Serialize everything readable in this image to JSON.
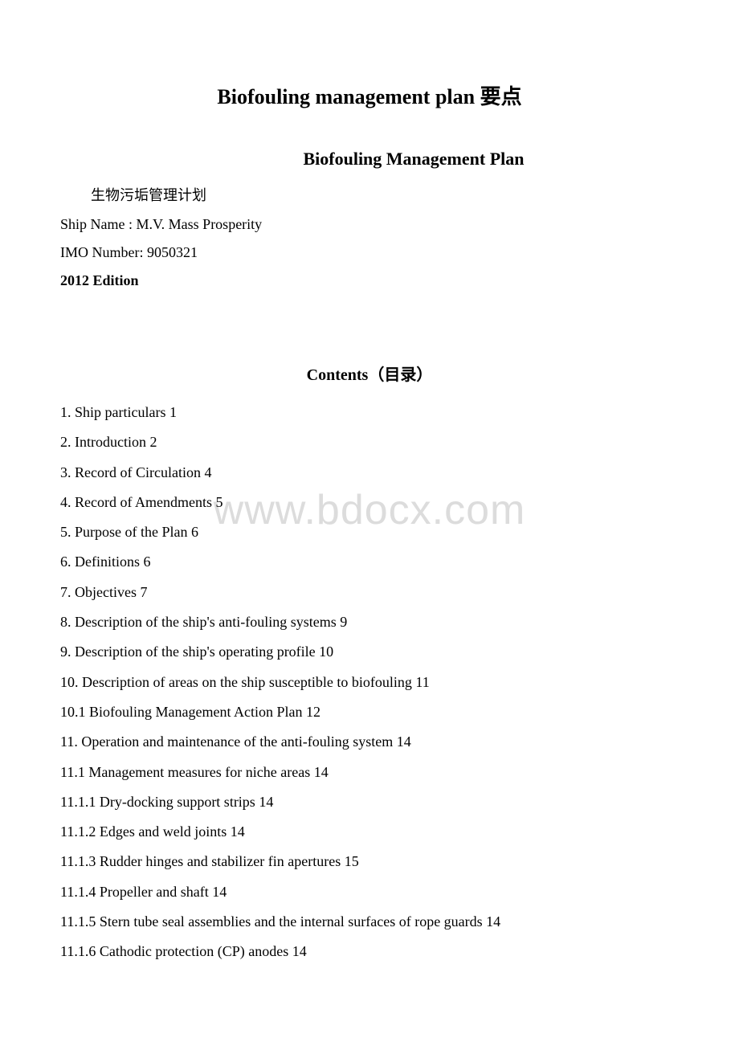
{
  "watermark": "www.bdocx.com",
  "main_title": "Biofouling management plan 要点",
  "subtitle": "Biofouling Management Plan",
  "indent_cn": "生物污垢管理计划",
  "ship_name_line": "Ship Name : M.V. Mass Prosperity",
  "imo_line": "IMO Number: 9050321",
  "edition_line": "2012 Edition",
  "contents_label": "Contents",
  "contents_cjk": "（目录）",
  "toc": [
    "1. Ship particulars 1",
    "2. Introduction 2",
    "3. Record of Circulation 4",
    "4. Record of Amendments 5",
    "5. Purpose of the Plan 6",
    "6. Definitions 6",
    "7. Objectives 7",
    "8. Description of the ship's anti-fouling systems 9",
    "9. Description of the ship's operating profile 10",
    "10. Description of areas on the ship susceptible to biofouling 11",
    "10.1 Biofouling Management Action Plan 12",
    "11. Operation and maintenance of the anti-fouling system 14",
    "11.1 Management measures for niche areas 14",
    "11.1.1 Dry-docking support strips 14",
    "11.1.2 Edges and weld joints 14",
    "11.1.3 Rudder hinges and stabilizer fin apertures 15",
    "11.1.4 Propeller and shaft 14",
    "11.1.5 Stern tube seal assemblies and the internal surfaces of rope guards 14",
    "11.1.6 Cathodic protection (CP) anodes 14"
  ]
}
